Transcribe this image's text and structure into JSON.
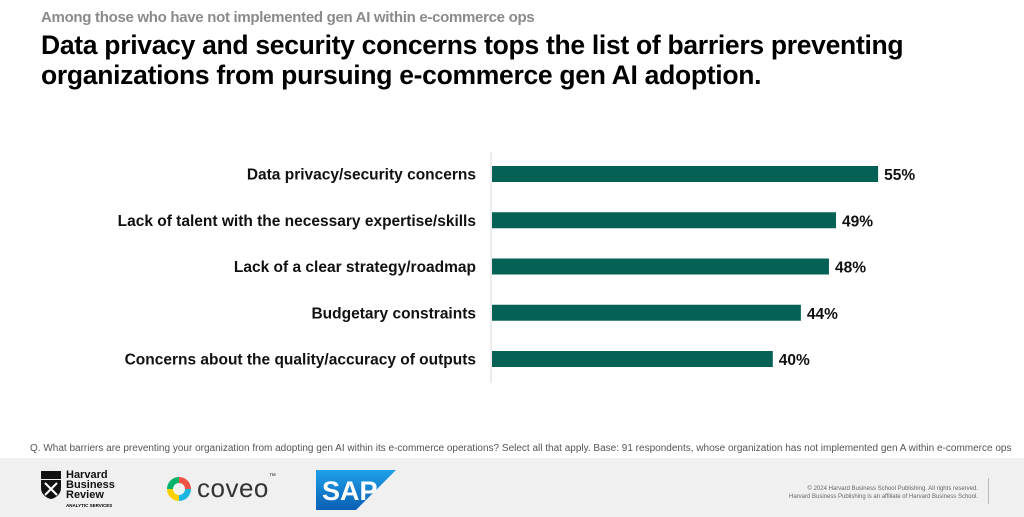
{
  "header": {
    "kicker": "Among those who have not implemented gen AI within e-commerce ops",
    "title": "Data privacy and security concerns tops the list of barriers preventing organizations from pursuing e-commerce gen AI adoption."
  },
  "chart_data": {
    "type": "bar",
    "orientation": "horizontal",
    "title": "Data privacy and security concerns tops the list of barriers preventing organizations from pursuing e-commerce gen AI adoption.",
    "categories": [
      "Data privacy/security concerns",
      "Lack of talent with the necessary expertise/skills",
      "Lack of a clear strategy/roadmap",
      "Budgetary constraints",
      "Concerns about the quality/accuracy of outputs"
    ],
    "values": [
      55,
      49,
      48,
      44,
      40
    ],
    "labels": [
      "55%",
      "49%",
      "48%",
      "44%",
      "40%"
    ],
    "unit": "%",
    "xlim": [
      0,
      60
    ],
    "grid": false,
    "color": "#056156"
  },
  "note": "Q. What barriers are preventing your organization from adopting gen AI within its e-commerce operations? Select all that apply.  Base: 91 respondents, whose organization has not implemented gen A within e-commerce ops",
  "footer": {
    "hbr_lines": [
      "Harvard",
      "Business",
      "Review"
    ],
    "hbr_sub": "ANALYTIC SERVICES",
    "coveo": "coveo",
    "coveo_tm": "™",
    "sap": "SAP",
    "copyright1": "© 2024 Harvard Business School Publishing. All rights reserved.",
    "copyright2": "Harvard Business Publishing is an affiliate of Harvard Business School."
  }
}
